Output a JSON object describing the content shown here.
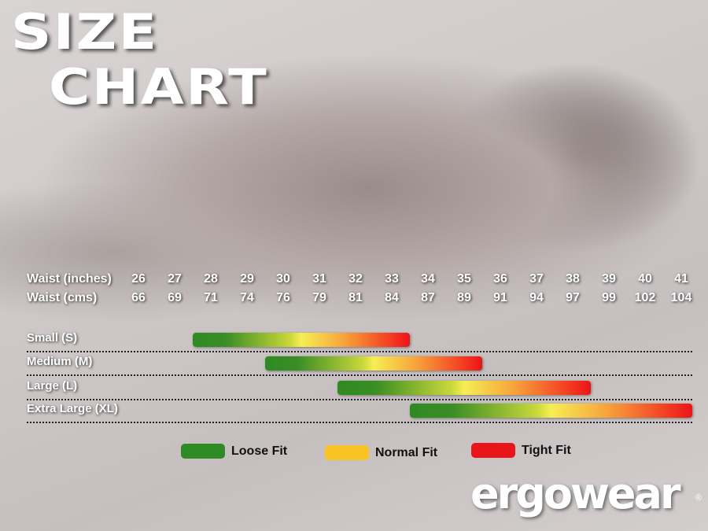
{
  "title_line1": "SIZE",
  "title_line2": "CHART",
  "chart_data": {
    "type": "range-bar",
    "header_rows": [
      {
        "label": "Waist (inches)",
        "values": [
          "26",
          "27",
          "28",
          "29",
          "30",
          "31",
          "32",
          "33",
          "34",
          "35",
          "36",
          "37",
          "38",
          "39",
          "40",
          "41"
        ]
      },
      {
        "label": "Waist (cms)",
        "values": [
          "66",
          "69",
          "71",
          "74",
          "76",
          "79",
          "81",
          "84",
          "87",
          "89",
          "91",
          "94",
          "97",
          "99",
          "102",
          "104"
        ]
      }
    ],
    "x_unit": "Waist (inches)",
    "xlim": [
      26,
      41
    ],
    "series": [
      {
        "name": "Small (S)",
        "start": 27.5,
        "end": 33.5
      },
      {
        "name": "Medium (M)",
        "start": 29.5,
        "end": 35.5
      },
      {
        "name": "Large (L)",
        "start": 31.5,
        "end": 38.5
      },
      {
        "name": "Extra Large (XL)",
        "start": 33.5,
        "end": 41.3
      }
    ],
    "gradient_colors": {
      "loose": "#2e8a22",
      "normal": "#f6ee55",
      "tight": "#e8151a"
    },
    "legend": [
      {
        "label": "Loose Fit",
        "color": "#2e8a22"
      },
      {
        "label": "Normal Fit",
        "color": "#f7c325"
      },
      {
        "label": "Tight Fit",
        "color": "#e8151a"
      }
    ],
    "legend_position": "bottom"
  },
  "brand": "ergowear"
}
